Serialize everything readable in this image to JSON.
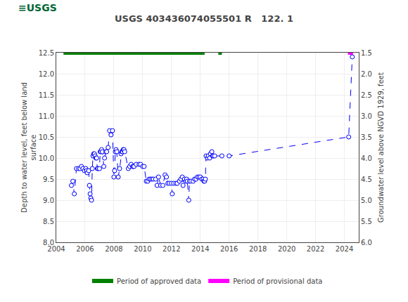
{
  "chart_data": {
    "type": "line",
    "title": "USGS 403436074055501 R   122. 1",
    "annotations": [
      {
        "text": "≡USGS",
        "color": "#006633"
      }
    ],
    "y_label": "Depth to water level, feet below land\nsurface",
    "y2_label": "Groundwater level above NGVD 1929, feet",
    "xlim": [
      2004,
      2025
    ],
    "xticks": [
      2004,
      2006,
      2008,
      2010,
      2012,
      2014,
      2016,
      2018,
      2020,
      2022,
      2024
    ],
    "ylim": [
      8.0,
      12.5
    ],
    "yticks": [
      {
        "value": 8.0,
        "label": "8.0"
      },
      8.5,
      {
        "value": 9.0,
        "label": "9.0"
      },
      9.5,
      {
        "value": 10.0,
        "label": "10.0"
      },
      10.5,
      {
        "value": 11.0,
        "label": "11.0"
      },
      11.5,
      {
        "value": 12.0,
        "label": "12.0"
      },
      12.5
    ],
    "y2lim": [
      6.0,
      1.5
    ],
    "y2ticks": [
      {
        "value": 6.0,
        "label": "6.0"
      },
      5.5,
      {
        "value": 5.0,
        "label": "5.0"
      },
      4.5,
      {
        "value": 4.0,
        "label": "4.0"
      },
      3.5,
      {
        "value": 3.0,
        "label": "3.0"
      },
      2.5,
      {
        "value": 2.0,
        "label": "2.0"
      },
      1.5
    ],
    "grid": true,
    "legend": "bottom",
    "series": [
      {
        "type": "line",
        "color": "#0000FF",
        "line_style": "dashed",
        "marker": "circle",
        "x": [
          2005.05,
          2005.15,
          2005.25,
          2005.4,
          2005.55,
          2005.65,
          2005.75,
          2005.85,
          2005.95,
          2006.05,
          2006.1,
          2006.15,
          2006.25,
          2006.3,
          2006.35,
          2006.4,
          2006.45,
          2006.5,
          2006.55,
          2006.6,
          2006.65,
          2006.7,
          2006.75,
          2006.8,
          2006.85,
          2006.9,
          2007.0,
          2007.05,
          2007.1,
          2007.15,
          2007.2,
          2007.3,
          2007.35,
          2007.45,
          2007.5,
          2007.6,
          2007.7,
          2007.8,
          2007.9,
          2008.0,
          2008.05,
          2008.1,
          2008.15,
          2008.2,
          2008.3,
          2008.4,
          2008.5,
          2008.55,
          2008.6,
          2008.65,
          2008.7,
          2008.75,
          2009.0,
          2009.1,
          2009.2,
          2009.3,
          2009.35,
          2009.4,
          2009.55,
          2009.75,
          2009.85,
          2010.0,
          2010.1,
          2010.25,
          2010.35,
          2010.45,
          2010.55,
          2010.65,
          2010.75,
          2010.9,
          2011.0,
          2011.1,
          2011.25,
          2011.4,
          2011.55,
          2011.65,
          2011.75,
          2011.85,
          2012.0,
          2012.05,
          2012.15,
          2012.3,
          2012.4,
          2012.55,
          2012.65,
          2012.75,
          2012.8,
          2012.9,
          2013.0,
          2013.05,
          2013.1,
          2013.2,
          2013.25,
          2013.35,
          2013.5,
          2013.6,
          2013.7,
          2013.8,
          2013.9,
          2014.0,
          2014.1,
          2014.2,
          2014.25,
          2014.3,
          2014.35,
          2014.4,
          2014.5,
          2014.55,
          2014.65,
          2014.7,
          2014.8,
          2014.85,
          2014.9,
          2015.0,
          2015.5,
          2016.0,
          2024.3,
          2024.55
        ],
        "values": [
          9.35,
          9.45,
          9.15,
          9.75,
          9.75,
          9.75,
          9.8,
          9.75,
          9.7,
          9.75,
          9.7,
          9.65,
          9.7,
          9.35,
          9.15,
          9.05,
          9.0,
          9.75,
          10.05,
          10.1,
          10.1,
          10.05,
          10.0,
          10.0,
          9.75,
          9.75,
          9.75,
          10.15,
          10.15,
          10.2,
          10.15,
          9.8,
          10.0,
          10.15,
          10.15,
          10.25,
          10.65,
          10.55,
          10.65,
          9.55,
          9.7,
          10.15,
          10.2,
          10.15,
          9.55,
          9.75,
          10.1,
          10.15,
          10.15,
          10.2,
          10.2,
          10.15,
          9.75,
          9.8,
          9.85,
          9.8,
          9.8,
          9.8,
          9.85,
          9.85,
          9.85,
          9.8,
          9.8,
          9.45,
          9.45,
          9.5,
          9.5,
          9.5,
          9.5,
          9.5,
          9.35,
          9.55,
          9.35,
          9.35,
          9.6,
          9.55,
          9.4,
          9.4,
          9.4,
          9.15,
          9.4,
          9.4,
          9.4,
          9.45,
          9.5,
          9.55,
          9.35,
          9.5,
          9.45,
          9.5,
          9.45,
          9.0,
          9.45,
          9.45,
          9.45,
          9.5,
          9.5,
          9.55,
          9.55,
          9.55,
          9.5,
          9.5,
          9.45,
          9.45,
          9.5,
          10.05,
          10.0,
          10.05,
          10.0,
          10.1,
          10.15,
          10.05,
          10.05,
          10.05,
          10.05,
          10.05,
          10.5,
          12.4
        ]
      },
      {
        "name": "Period of approved data",
        "type": "line",
        "color": "#008000",
        "line_style": "solid",
        "x": [
          2004.5,
          2014.3,
          null,
          2015.25,
          2015.5
        ],
        "values": [
          12.5,
          12.5,
          null,
          12.5,
          12.5
        ]
      },
      {
        "name": "Period of provisional data",
        "type": "line",
        "color": "#FF00FF",
        "line_style": "solid",
        "x": [
          2024.25,
          2024.6
        ],
        "values": [
          12.5,
          12.5
        ]
      }
    ]
  }
}
